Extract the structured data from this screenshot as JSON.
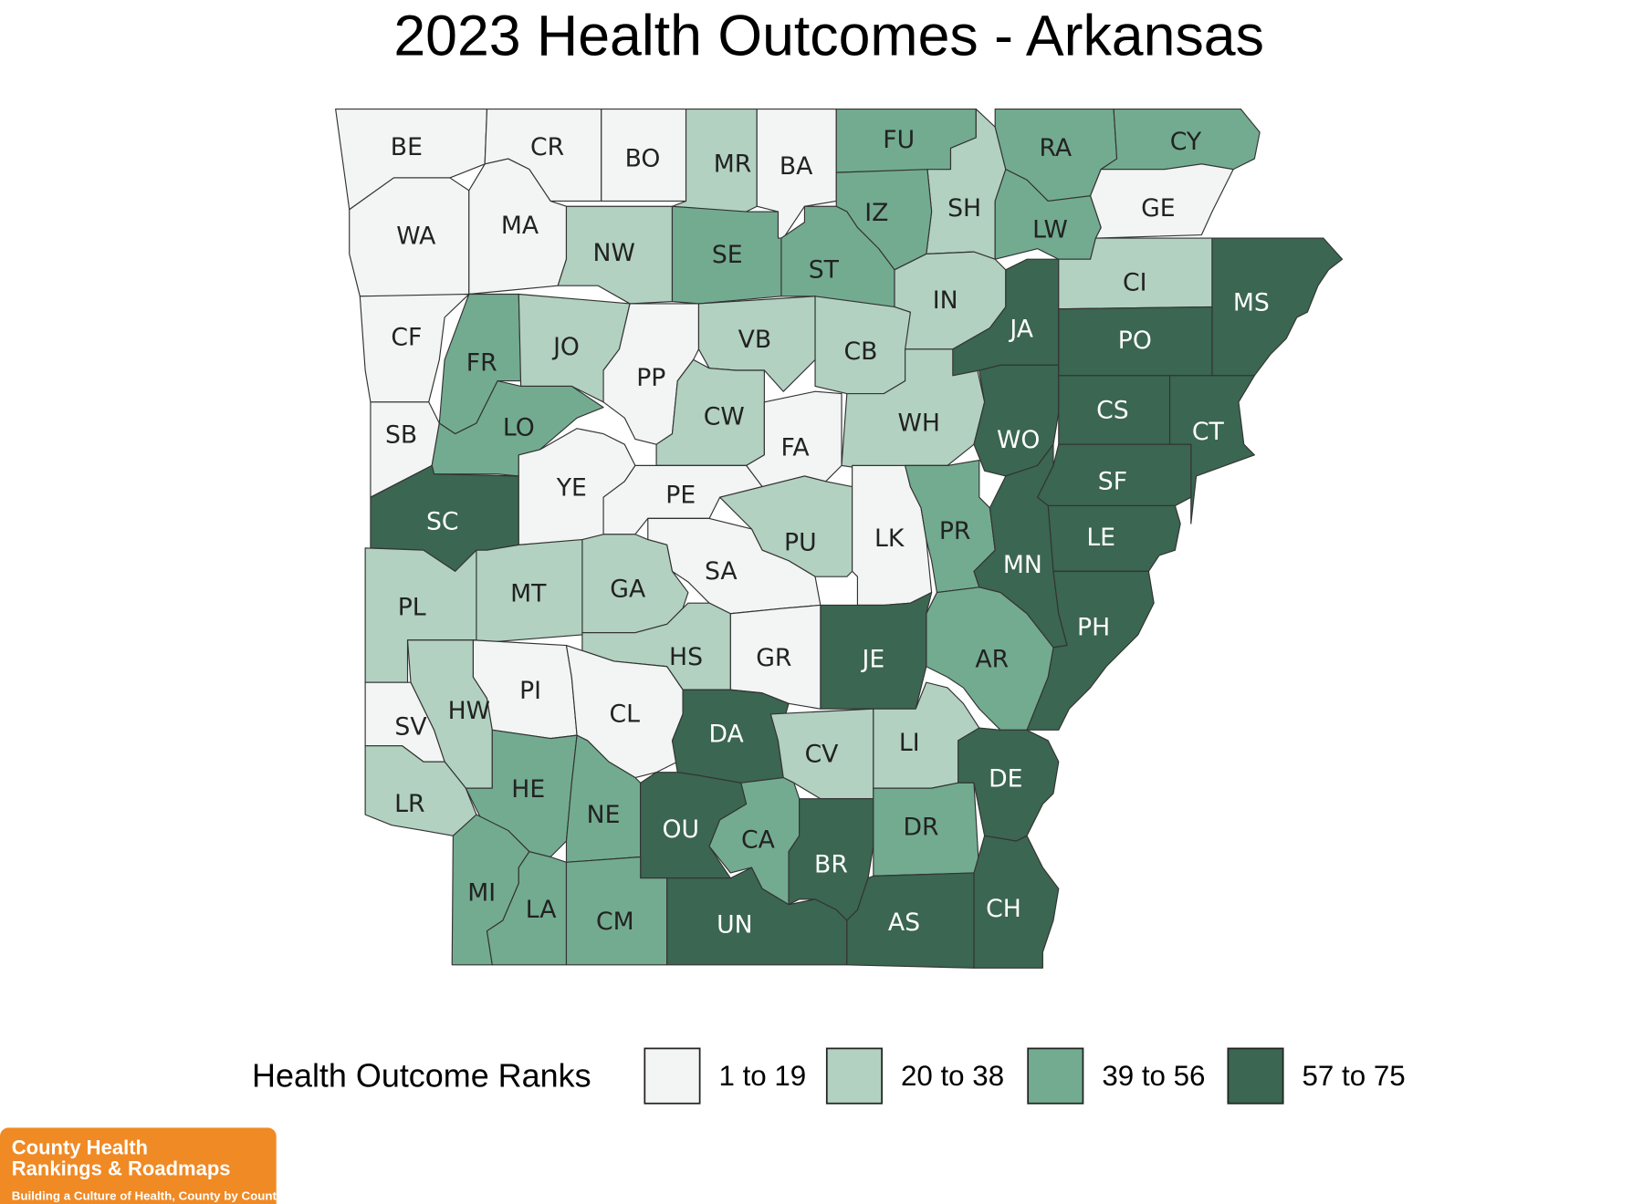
{
  "title": "2023 Health Outcomes - Arkansas",
  "legend": {
    "title": "Health Outcome Ranks",
    "items": [
      {
        "label": "1 to 19",
        "color": "#f2f5f3"
      },
      {
        "label": "20 to 38",
        "color": "#b2d1c1"
      },
      {
        "label": "39 to 56",
        "color": "#73ab90"
      },
      {
        "label": "57 to 75",
        "color": "#3b6651"
      }
    ]
  },
  "counties": [
    {
      "label": "BE",
      "color": "#f2f5f3"
    },
    {
      "label": "CR",
      "color": "#f2f5f3"
    },
    {
      "label": "BO",
      "color": "#f2f5f3"
    },
    {
      "label": "MR",
      "color": "#b2d1c1"
    },
    {
      "label": "BA",
      "color": "#f2f5f3"
    },
    {
      "label": "FU",
      "color": "#73ab90"
    },
    {
      "label": "SH",
      "color": "#b2d1c1"
    },
    {
      "label": "RA",
      "color": "#73ab90"
    },
    {
      "label": "CY",
      "color": "#73ab90"
    },
    {
      "label": "GE",
      "color": "#f2f5f3"
    },
    {
      "label": "LW",
      "color": "#73ab90"
    },
    {
      "label": "IZ",
      "color": "#73ab90"
    },
    {
      "label": "ST",
      "color": "#73ab90"
    },
    {
      "label": "WA",
      "color": "#f2f5f3"
    },
    {
      "label": "MA",
      "color": "#f2f5f3"
    },
    {
      "label": "NW",
      "color": "#b2d1c1"
    },
    {
      "label": "SE",
      "color": "#73ab90"
    },
    {
      "label": "CF",
      "color": "#f2f5f3"
    },
    {
      "label": "FR",
      "color": "#73ab90"
    },
    {
      "label": "JO",
      "color": "#b2d1c1"
    },
    {
      "label": "PP",
      "color": "#f2f5f3"
    },
    {
      "label": "VB",
      "color": "#b2d1c1"
    },
    {
      "label": "CB",
      "color": "#b2d1c1"
    },
    {
      "label": "IN",
      "color": "#b2d1c1"
    },
    {
      "label": "SB",
      "color": "#f2f5f3"
    },
    {
      "label": "LO",
      "color": "#73ab90"
    },
    {
      "label": "SC",
      "color": "#3b6651"
    },
    {
      "label": "YE",
      "color": "#f2f5f3"
    },
    {
      "label": "CW",
      "color": "#b2d1c1"
    },
    {
      "label": "FA",
      "color": "#f2f5f3"
    },
    {
      "label": "WH",
      "color": "#b2d1c1"
    },
    {
      "label": "PE",
      "color": "#f2f5f3"
    },
    {
      "label": "PU",
      "color": "#b2d1c1"
    },
    {
      "label": "LK",
      "color": "#f2f5f3"
    },
    {
      "label": "PR",
      "color": "#73ab90"
    },
    {
      "label": "WO",
      "color": "#3b6651"
    },
    {
      "label": "JA",
      "color": "#3b6651"
    },
    {
      "label": "CI",
      "color": "#b2d1c1"
    },
    {
      "label": "PO",
      "color": "#3b6651"
    },
    {
      "label": "MS",
      "color": "#3b6651"
    },
    {
      "label": "CS",
      "color": "#3b6651"
    },
    {
      "label": "CT",
      "color": "#3b6651"
    },
    {
      "label": "SF",
      "color": "#3b6651"
    },
    {
      "label": "LE",
      "color": "#3b6651"
    },
    {
      "label": "MN",
      "color": "#3b6651"
    },
    {
      "label": "PH",
      "color": "#3b6651"
    },
    {
      "label": "AR",
      "color": "#73ab90"
    },
    {
      "label": "JE",
      "color": "#3b6651"
    },
    {
      "label": "SA",
      "color": "#f2f5f3"
    },
    {
      "label": "GA",
      "color": "#b2d1c1"
    },
    {
      "label": "GR",
      "color": "#f2f5f3"
    },
    {
      "label": "MT",
      "color": "#b2d1c1"
    },
    {
      "label": "PL",
      "color": "#b2d1c1"
    },
    {
      "label": "HS",
      "color": "#b2d1c1"
    },
    {
      "label": "HW",
      "color": "#b2d1c1"
    },
    {
      "label": "PI",
      "color": "#f2f5f3"
    },
    {
      "label": "CL",
      "color": "#f2f5f3"
    },
    {
      "label": "SV",
      "color": "#f2f5f3"
    },
    {
      "label": "LR",
      "color": "#b2d1c1"
    },
    {
      "label": "DA",
      "color": "#3b6651"
    },
    {
      "label": "CV",
      "color": "#b2d1c1"
    },
    {
      "label": "LI",
      "color": "#b2d1c1"
    },
    {
      "label": "DE",
      "color": "#3b6651"
    },
    {
      "label": "HE",
      "color": "#73ab90"
    },
    {
      "label": "NE",
      "color": "#73ab90"
    },
    {
      "label": "OU",
      "color": "#3b6651"
    },
    {
      "label": "CA",
      "color": "#73ab90"
    },
    {
      "label": "BR",
      "color": "#3b6651"
    },
    {
      "label": "DR",
      "color": "#73ab90"
    },
    {
      "label": "MI",
      "color": "#73ab90"
    },
    {
      "label": "LA",
      "color": "#73ab90"
    },
    {
      "label": "CM",
      "color": "#73ab90"
    },
    {
      "label": "UN",
      "color": "#3b6651"
    },
    {
      "label": "AS",
      "color": "#3b6651"
    },
    {
      "label": "CH",
      "color": "#3b6651"
    }
  ],
  "logo": {
    "lines": [
      "County Health",
      "Rankings & Roadmaps"
    ],
    "tagline": "Building a Culture of Health, County by County"
  }
}
